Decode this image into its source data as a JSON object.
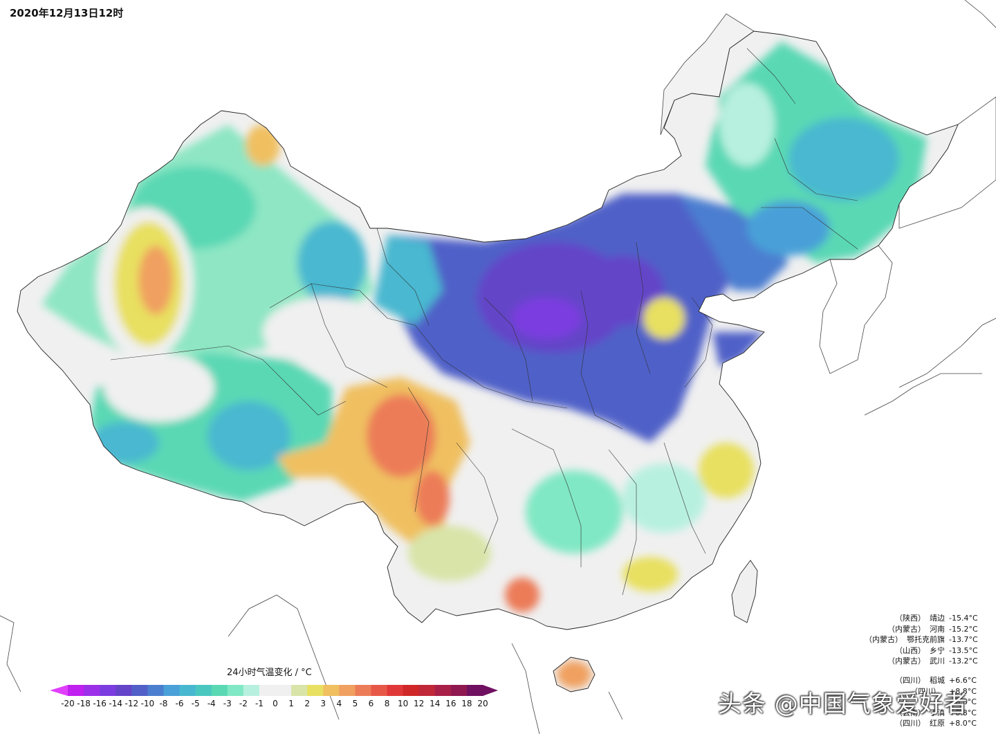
{
  "title": "2020年12月13日12时",
  "colorbar": {
    "title": "24小时气温变化 / °C",
    "ticks": [
      "-20",
      "-18",
      "-16",
      "-14",
      "-12",
      "-10",
      "-8",
      "-6",
      "-5",
      "-4",
      "-3",
      "-2",
      "-1",
      "0",
      "1",
      "2",
      "3",
      "4",
      "5",
      "6",
      "8",
      "10",
      "12",
      "14",
      "16",
      "18",
      "20"
    ],
    "colors": [
      "#e040fb",
      "#c020f0",
      "#9c30e8",
      "#7c3de0",
      "#6444c8",
      "#5060c8",
      "#4c7ed0",
      "#4aa0d8",
      "#48b8d0",
      "#4ac8c0",
      "#5ad8b4",
      "#80e8c4",
      "#b8f0e0",
      "#f0f0f0",
      "#f0f0f0",
      "#d8e4a8",
      "#e8e060",
      "#f0c060",
      "#f0a060",
      "#ec7c58",
      "#e85848",
      "#e03838",
      "#d02828",
      "#c02838",
      "#a82048",
      "#901850",
      "#701060"
    ]
  },
  "stats_cold": [
    {
      "prov": "（陕西）",
      "city": "靖边",
      "val": "-15.4°C"
    },
    {
      "prov": "（内蒙古）",
      "city": "河南",
      "val": "-15.2°C"
    },
    {
      "prov": "（内蒙古）",
      "city": "鄂托克前旗",
      "val": "-13.7°C"
    },
    {
      "prov": "（山西）",
      "city": "乡宁",
      "val": "-13.5°C"
    },
    {
      "prov": "（内蒙古）",
      "city": "武川",
      "val": "-13.2°C"
    }
  ],
  "stats_warm": [
    {
      "prov": "（四川）",
      "city": "稻城",
      "val": "+6.6°C"
    },
    {
      "prov": "（四川）",
      "city": "",
      "val": "+8.8°C"
    },
    {
      "prov": "",
      "city": "",
      "val": "+8.8°C"
    },
    {
      "prov": "（云南）",
      "city": "丁滇",
      "val": "+8.8°C"
    },
    {
      "prov": "（四川）",
      "city": "红原",
      "val": "+8.0°C"
    }
  ],
  "watermark": "头条 @中国气象爱好者"
}
